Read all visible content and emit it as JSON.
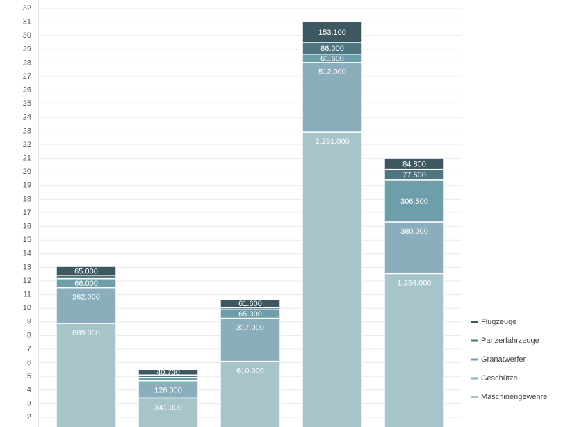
{
  "chart_data": {
    "type": "stacked-bar",
    "categories": [
      null,
      null,
      null,
      null,
      null
    ],
    "series": [
      {
        "name": "Maschinengewehre",
        "color": "#a6c4ca",
        "values": [
          8.89,
          3.41,
          6.1,
          22.91,
          12.54
        ],
        "value_labels": [
          "889.000",
          "341.000",
          "610.000",
          "2.291.000",
          "1.254.000"
        ]
      },
      {
        "name": "Geschütze",
        "color": "#8aaebb",
        "values": [
          2.62,
          1.26,
          3.17,
          5.12,
          3.8
        ],
        "value_labels": [
          "262.000",
          "126.000",
          "317.000",
          "512.000",
          "380.000"
        ]
      },
      {
        "name": "Granatwerfer",
        "color": "#6e9eaa",
        "values": [
          0.66,
          0.25,
          0.653,
          0.616,
          3.065
        ],
        "value_labels": [
          "66.000",
          null,
          "65.300",
          "61.600",
          "306.500"
        ]
      },
      {
        "name": "Panzerfahrzeuge",
        "color": "#4f7680",
        "values": [
          0.25,
          0.18,
          0.12,
          0.86,
          0.775
        ],
        "value_labels": [
          null,
          null,
          null,
          "86.000",
          "77.500"
        ]
      },
      {
        "name": "Flugzeuge",
        "color": "#3d5861",
        "values": [
          0.65,
          0.407,
          0.616,
          1.531,
          0.848
        ],
        "value_labels": [
          "65.000",
          "40.700",
          "61.600",
          "153.100",
          "84.800"
        ]
      }
    ],
    "ylim": [
      0,
      32.6
    ],
    "yticks": [
      2,
      3,
      4,
      5,
      6,
      7,
      8,
      9,
      10,
      11,
      12,
      13,
      14,
      15,
      16,
      17,
      18,
      19,
      20,
      21,
      22,
      23,
      24,
      25,
      26,
      27,
      28,
      29,
      30,
      31,
      32
    ],
    "grid": true,
    "legend": "right"
  }
}
